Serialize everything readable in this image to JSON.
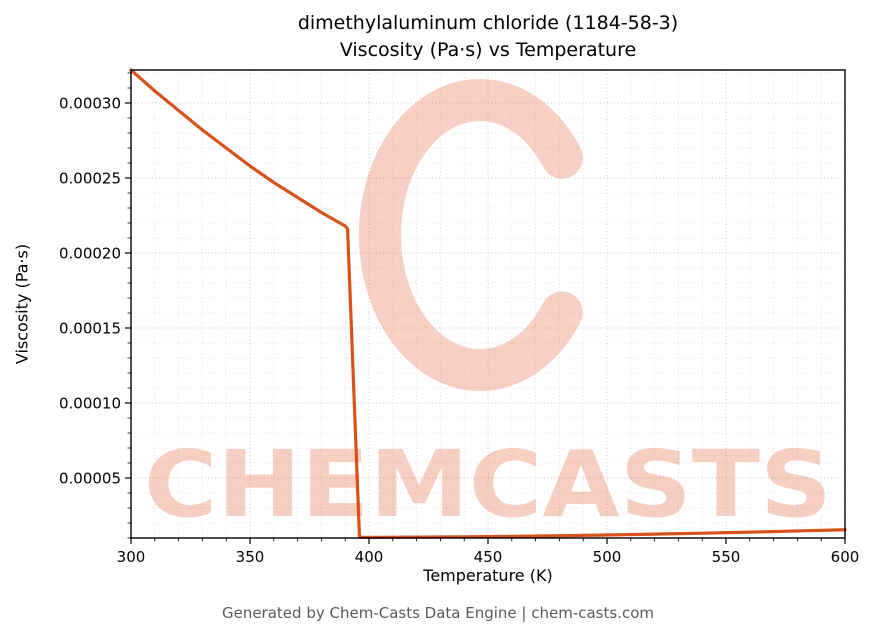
{
  "title": {
    "line1": "dimethylaluminum chloride (1184-58-3)",
    "line2": "Viscosity (Pa·s) vs Temperature"
  },
  "footer": {
    "text": "Generated by Chem-Casts Data Engine | chem-casts.com"
  },
  "watermark": {
    "text": "CHEMCASTS",
    "logo": "chemcasts-c-logo",
    "color": "#e8603a",
    "opacity": 0.3
  },
  "colors": {
    "line": "#d9521c",
    "grid_minor": "#dcdcdc",
    "grid_major": "#c6c6c6",
    "frame": "#000000",
    "tick_text": "#000000",
    "footer_text": "#595959"
  },
  "chart_data": {
    "type": "line",
    "title": "dimethylaluminum chloride (1184-58-3) — Viscosity (Pa·s) vs Temperature",
    "xlabel": "Temperature (K)",
    "ylabel": "Viscosity (Pa·s)",
    "xlim": [
      300,
      600
    ],
    "ylim": [
      1e-05,
      0.000322
    ],
    "xticks": [
      300,
      350,
      400,
      450,
      500,
      550,
      600
    ],
    "xtick_labels": [
      "300",
      "350",
      "400",
      "450",
      "500",
      "550",
      "600"
    ],
    "yticks": [
      5e-05,
      0.0001,
      0.00015,
      0.0002,
      0.00025,
      0.0003
    ],
    "ytick_labels": [
      "0.00005",
      "0.00010",
      "0.00015",
      "0.00020",
      "0.00025",
      "0.00030"
    ],
    "minor_x_step": 10,
    "minor_y_step": 1e-05,
    "grid": true,
    "legend": "none",
    "series": [
      {
        "name": "Viscosity (Pa·s)",
        "x": [
          300,
          310,
          320,
          330,
          340,
          350,
          360,
          370,
          380,
          390,
          391,
          396,
          400,
          420,
          440,
          460,
          480,
          500,
          520,
          540,
          560,
          580,
          600
        ],
        "y": [
          0.000322,
          0.000308,
          0.000295,
          0.000282,
          0.00027,
          0.000258,
          0.000247,
          0.000237,
          0.000227,
          0.000218,
          0.000216,
          1.05e-05,
          1.04e-05,
          1.06e-05,
          1.08e-05,
          1.11e-05,
          1.15e-05,
          1.2e-05,
          1.26e-05,
          1.32e-05,
          1.39e-05,
          1.47e-05,
          1.55e-05
        ]
      }
    ]
  }
}
